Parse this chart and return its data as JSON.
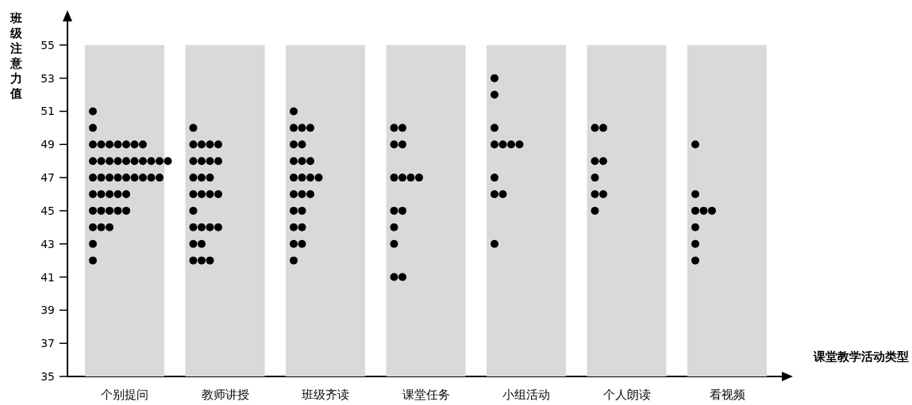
{
  "chart_data": {
    "type": "scatter",
    "categories": [
      "个别提问",
      "教师讲授",
      "班级齐读",
      "课堂任务",
      "小组活动",
      "个人朗读",
      "看视频"
    ],
    "xlabel": "课堂教学活动类型",
    "ylabel": "班级注意力值",
    "ylim": [
      35,
      57
    ],
    "yticks": [
      35,
      37,
      39,
      41,
      43,
      45,
      47,
      49,
      51,
      53,
      55
    ],
    "grid": false,
    "marker": "circle",
    "series": [
      {
        "type": "bar",
        "color": "#d9d9d9",
        "values": [
          55,
          55,
          55,
          55,
          55,
          55,
          55
        ]
      },
      {
        "color": "#000000",
        "x": [
          "个别提问",
          "个别提问",
          "个别提问",
          "个别提问",
          "个别提问",
          "个别提问",
          "个别提问",
          "个别提问",
          "个别提问",
          "个别提问",
          "个别提问",
          "个别提问",
          "个别提问",
          "个别提问",
          "个别提问",
          "个别提问",
          "个别提问",
          "个别提问",
          "个别提问",
          "个别提问",
          "个别提问",
          "个别提问",
          "个别提问",
          "个别提问",
          "个别提问",
          "个别提问",
          "个别提问",
          "个别提问",
          "个别提问",
          "个别提问",
          "个别提问",
          "个别提问",
          "个别提问",
          "个别提问",
          "个别提问",
          "个别提问",
          "个别提问",
          "个别提问",
          "个别提问",
          "个别提问",
          "个别提问",
          "个别提问",
          "个别提问",
          "教师讲授",
          "教师讲授",
          "教师讲授",
          "教师讲授",
          "教师讲授",
          "教师讲授",
          "教师讲授",
          "教师讲授",
          "教师讲授",
          "教师讲授",
          "教师讲授",
          "教师讲授",
          "教师讲授",
          "教师讲授",
          "教师讲授",
          "教师讲授",
          "教师讲授",
          "教师讲授",
          "教师讲授",
          "教师讲授",
          "教师讲授",
          "教师讲授",
          "教师讲授",
          "教师讲授",
          "教师讲授",
          "教师讲授",
          "班级齐读",
          "班级齐读",
          "班级齐读",
          "班级齐读",
          "班级齐读",
          "班级齐读",
          "班级齐读",
          "班级齐读",
          "班级齐读",
          "班级齐读",
          "班级齐读",
          "班级齐读",
          "班级齐读",
          "班级齐读",
          "班级齐读",
          "班级齐读",
          "班级齐读",
          "班级齐读",
          "班级齐读",
          "班级齐读",
          "班级齐读",
          "班级齐读",
          "班级齐读",
          "课堂任务",
          "课堂任务",
          "课堂任务",
          "课堂任务",
          "课堂任务",
          "课堂任务",
          "课堂任务",
          "课堂任务",
          "课堂任务",
          "课堂任务",
          "课堂任务",
          "课堂任务",
          "课堂任务",
          "课堂任务",
          "小组活动",
          "小组活动",
          "小组活动",
          "小组活动",
          "小组活动",
          "小组活动",
          "小组活动",
          "小组活动",
          "小组活动",
          "小组活动",
          "小组活动",
          "个人朗读",
          "个人朗读",
          "个人朗读",
          "个人朗读",
          "个人朗读",
          "个人朗读",
          "个人朗读",
          "个人朗读",
          "看视频",
          "看视频",
          "看视频",
          "看视频",
          "看视频",
          "看视频",
          "看视频",
          "看视频"
        ],
        "values": [
          51,
          50,
          49,
          49,
          49,
          49,
          49,
          49,
          49,
          48,
          48,
          48,
          48,
          48,
          48,
          48,
          48,
          48,
          48,
          47,
          47,
          47,
          47,
          47,
          47,
          47,
          47,
          47,
          46,
          46,
          46,
          46,
          46,
          45,
          45,
          45,
          45,
          45,
          44,
          44,
          44,
          43,
          42,
          50,
          49,
          49,
          49,
          49,
          48,
          48,
          48,
          48,
          47,
          47,
          47,
          46,
          46,
          46,
          46,
          45,
          44,
          44,
          44,
          44,
          43,
          43,
          42,
          42,
          42,
          51,
          50,
          50,
          50,
          49,
          49,
          48,
          48,
          48,
          47,
          47,
          47,
          47,
          46,
          46,
          46,
          45,
          45,
          44,
          44,
          43,
          43,
          42,
          50,
          50,
          49,
          49,
          47,
          47,
          47,
          47,
          45,
          45,
          44,
          43,
          41,
          41,
          53,
          52,
          50,
          49,
          49,
          49,
          49,
          47,
          46,
          46,
          43,
          50,
          50,
          48,
          48,
          47,
          46,
          46,
          45,
          49,
          46,
          45,
          45,
          45,
          44,
          43,
          42
        ]
      }
    ]
  }
}
